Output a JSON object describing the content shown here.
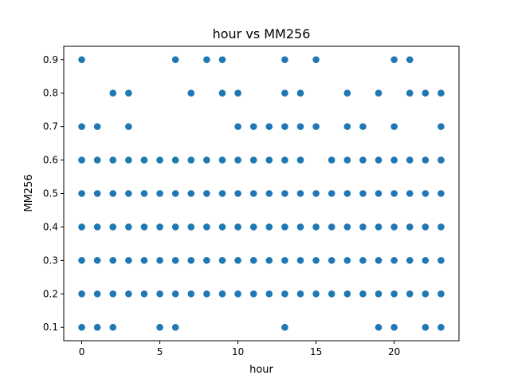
{
  "chart_data": {
    "type": "scatter",
    "title": "hour vs MM256",
    "xlabel": "hour",
    "ylabel": "MM256",
    "xlim": [
      -1.15,
      24.15
    ],
    "ylim": [
      0.06,
      0.94
    ],
    "x_ticks": [
      0,
      5,
      10,
      15,
      20
    ],
    "x_tick_labels": [
      "0",
      "5",
      "10",
      "15",
      "20"
    ],
    "y_ticks": [
      0.1,
      0.2,
      0.3,
      0.4,
      0.5,
      0.6,
      0.7,
      0.8,
      0.9
    ],
    "y_tick_labels": [
      "0.1",
      "0.2",
      "0.3",
      "0.4",
      "0.5",
      "0.6",
      "0.7",
      "0.8",
      "0.9"
    ],
    "grid": false,
    "marker_color": "#1f77b4",
    "points": [
      [
        0,
        0.1
      ],
      [
        0,
        0.2
      ],
      [
        0,
        0.3
      ],
      [
        0,
        0.4
      ],
      [
        0,
        0.5
      ],
      [
        0,
        0.6
      ],
      [
        0,
        0.7
      ],
      [
        0,
        0.9
      ],
      [
        1,
        0.1
      ],
      [
        1,
        0.2
      ],
      [
        1,
        0.3
      ],
      [
        1,
        0.4
      ],
      [
        1,
        0.5
      ],
      [
        1,
        0.6
      ],
      [
        1,
        0.7
      ],
      [
        2,
        0.1
      ],
      [
        2,
        0.2
      ],
      [
        2,
        0.3
      ],
      [
        2,
        0.4
      ],
      [
        2,
        0.5
      ],
      [
        2,
        0.6
      ],
      [
        2,
        0.8
      ],
      [
        3,
        0.2
      ],
      [
        3,
        0.3
      ],
      [
        3,
        0.4
      ],
      [
        3,
        0.5
      ],
      [
        3,
        0.6
      ],
      [
        3,
        0.7
      ],
      [
        3,
        0.8
      ],
      [
        4,
        0.2
      ],
      [
        4,
        0.3
      ],
      [
        4,
        0.4
      ],
      [
        4,
        0.5
      ],
      [
        4,
        0.6
      ],
      [
        5,
        0.1
      ],
      [
        5,
        0.2
      ],
      [
        5,
        0.3
      ],
      [
        5,
        0.4
      ],
      [
        5,
        0.5
      ],
      [
        5,
        0.6
      ],
      [
        6,
        0.1
      ],
      [
        6,
        0.2
      ],
      [
        6,
        0.3
      ],
      [
        6,
        0.4
      ],
      [
        6,
        0.5
      ],
      [
        6,
        0.6
      ],
      [
        6,
        0.9
      ],
      [
        7,
        0.2
      ],
      [
        7,
        0.3
      ],
      [
        7,
        0.4
      ],
      [
        7,
        0.5
      ],
      [
        7,
        0.6
      ],
      [
        7,
        0.8
      ],
      [
        8,
        0.2
      ],
      [
        8,
        0.3
      ],
      [
        8,
        0.4
      ],
      [
        8,
        0.5
      ],
      [
        8,
        0.6
      ],
      [
        8,
        0.9
      ],
      [
        9,
        0.2
      ],
      [
        9,
        0.3
      ],
      [
        9,
        0.4
      ],
      [
        9,
        0.5
      ],
      [
        9,
        0.6
      ],
      [
        9,
        0.8
      ],
      [
        9,
        0.9
      ],
      [
        10,
        0.2
      ],
      [
        10,
        0.3
      ],
      [
        10,
        0.4
      ],
      [
        10,
        0.5
      ],
      [
        10,
        0.6
      ],
      [
        10,
        0.7
      ],
      [
        10,
        0.8
      ],
      [
        11,
        0.2
      ],
      [
        11,
        0.3
      ],
      [
        11,
        0.4
      ],
      [
        11,
        0.5
      ],
      [
        11,
        0.6
      ],
      [
        11,
        0.7
      ],
      [
        12,
        0.2
      ],
      [
        12,
        0.3
      ],
      [
        12,
        0.4
      ],
      [
        12,
        0.5
      ],
      [
        12,
        0.6
      ],
      [
        12,
        0.7
      ],
      [
        13,
        0.1
      ],
      [
        13,
        0.2
      ],
      [
        13,
        0.3
      ],
      [
        13,
        0.4
      ],
      [
        13,
        0.5
      ],
      [
        13,
        0.6
      ],
      [
        13,
        0.7
      ],
      [
        13,
        0.8
      ],
      [
        13,
        0.9
      ],
      [
        14,
        0.2
      ],
      [
        14,
        0.3
      ],
      [
        14,
        0.4
      ],
      [
        14,
        0.5
      ],
      [
        14,
        0.6
      ],
      [
        14,
        0.7
      ],
      [
        14,
        0.8
      ],
      [
        15,
        0.2
      ],
      [
        15,
        0.3
      ],
      [
        15,
        0.4
      ],
      [
        15,
        0.5
      ],
      [
        15,
        0.7
      ],
      [
        15,
        0.9
      ],
      [
        16,
        0.2
      ],
      [
        16,
        0.3
      ],
      [
        16,
        0.4
      ],
      [
        16,
        0.5
      ],
      [
        16,
        0.6
      ],
      [
        17,
        0.2
      ],
      [
        17,
        0.3
      ],
      [
        17,
        0.4
      ],
      [
        17,
        0.5
      ],
      [
        17,
        0.6
      ],
      [
        17,
        0.7
      ],
      [
        17,
        0.8
      ],
      [
        18,
        0.2
      ],
      [
        18,
        0.3
      ],
      [
        18,
        0.4
      ],
      [
        18,
        0.5
      ],
      [
        18,
        0.6
      ],
      [
        18,
        0.7
      ],
      [
        19,
        0.1
      ],
      [
        19,
        0.2
      ],
      [
        19,
        0.3
      ],
      [
        19,
        0.4
      ],
      [
        19,
        0.5
      ],
      [
        19,
        0.6
      ],
      [
        19,
        0.8
      ],
      [
        20,
        0.1
      ],
      [
        20,
        0.2
      ],
      [
        20,
        0.3
      ],
      [
        20,
        0.4
      ],
      [
        20,
        0.5
      ],
      [
        20,
        0.6
      ],
      [
        20,
        0.7
      ],
      [
        20,
        0.9
      ],
      [
        21,
        0.2
      ],
      [
        21,
        0.3
      ],
      [
        21,
        0.4
      ],
      [
        21,
        0.5
      ],
      [
        21,
        0.6
      ],
      [
        21,
        0.8
      ],
      [
        21,
        0.9
      ],
      [
        22,
        0.1
      ],
      [
        22,
        0.2
      ],
      [
        22,
        0.3
      ],
      [
        22,
        0.4
      ],
      [
        22,
        0.5
      ],
      [
        22,
        0.6
      ],
      [
        22,
        0.8
      ],
      [
        23,
        0.1
      ],
      [
        23,
        0.2
      ],
      [
        23,
        0.3
      ],
      [
        23,
        0.4
      ],
      [
        23,
        0.5
      ],
      [
        23,
        0.6
      ],
      [
        23,
        0.7
      ],
      [
        23,
        0.8
      ]
    ]
  }
}
